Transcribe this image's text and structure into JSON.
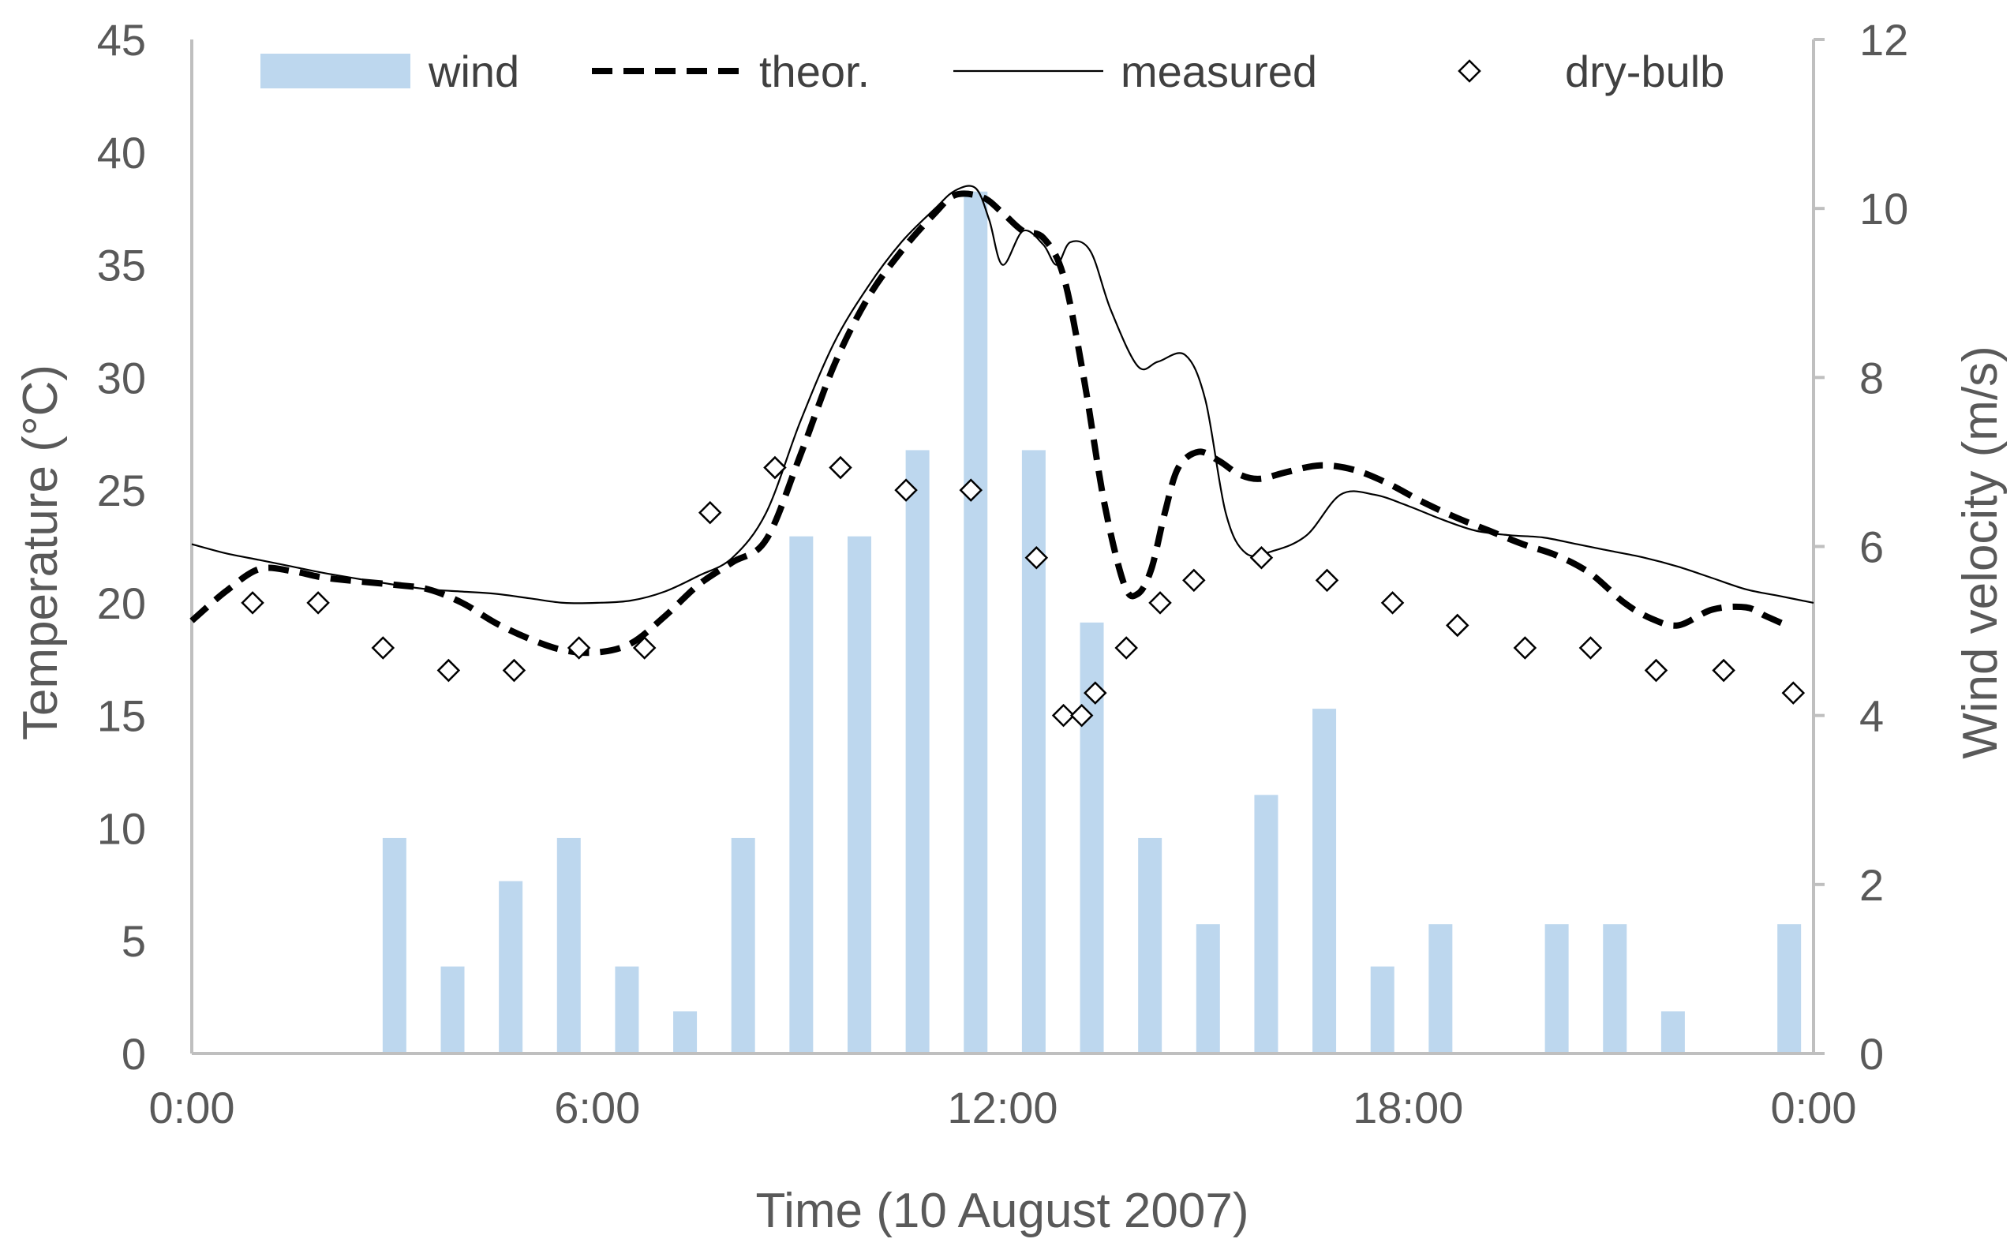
{
  "chart_data": {
    "type": "combo",
    "title": "",
    "xlabel": "Time (10 August 2007)",
    "ylabel_left": "Temperature (°C)",
    "ylabel_right": "Wind velocity (m/s)",
    "xlim_hours": [
      0,
      24
    ],
    "ylim_left": [
      0,
      45
    ],
    "ylim_right": [
      0,
      12
    ],
    "x_ticks": [
      {
        "hour": 0,
        "label": "0:00"
      },
      {
        "hour": 6,
        "label": "6:00"
      },
      {
        "hour": 12,
        "label": "12:00"
      },
      {
        "hour": 18,
        "label": "18:00"
      },
      {
        "hour": 24,
        "label": "0:00"
      }
    ],
    "y_left_ticks": [
      0,
      5,
      10,
      15,
      20,
      25,
      30,
      35,
      40,
      45
    ],
    "y_right_ticks": [
      0,
      2,
      4,
      6,
      8,
      10,
      12
    ],
    "legend_position": "top",
    "legend": [
      {
        "key": "wind",
        "label": "wind"
      },
      {
        "key": "theor",
        "label": "theor."
      },
      {
        "key": "measured",
        "label": "measured"
      },
      {
        "key": "drybulb",
        "label": "dry-bulb"
      }
    ],
    "colors": {
      "wind": "#bdd7ee",
      "line": "#000000",
      "axis": "#bfbfbf",
      "text": "#595959"
    },
    "series": [
      {
        "name": "wind",
        "type": "bar",
        "axis": "right",
        "hours": [
          3,
          3.86,
          4.72,
          5.58,
          6.44,
          7.3,
          8.16,
          9.02,
          9.88,
          10.74,
          11.6,
          12.46,
          13.32,
          14.18,
          15.04,
          15.9,
          16.76,
          17.62,
          18.48,
          19.34,
          20.2,
          21.06,
          21.92,
          22.78,
          23.64
        ],
        "values": [
          2.55,
          1.03,
          2.04,
          2.55,
          1.03,
          0.5,
          2.55,
          6.12,
          6.12,
          7.14,
          10.2,
          7.14,
          5.1,
          2.55,
          1.53,
          3.06,
          4.08,
          1.03,
          1.53,
          0,
          1.53,
          1.53,
          0.5,
          0,
          1.53
        ]
      },
      {
        "name": "theor.",
        "type": "line",
        "style": "dashed",
        "axis": "left",
        "hours": [
          0,
          0.5,
          1,
          1.5,
          2,
          3,
          3.5,
          4,
          4.5,
          5,
          5.5,
          6,
          6.5,
          7,
          7.5,
          8,
          8.5,
          9,
          9.5,
          10,
          10.5,
          11,
          11.3,
          11.7,
          12,
          12.3,
          12.6,
          12.9,
          13.2,
          13.5,
          13.8,
          14,
          14.2,
          14.4,
          14.6,
          14.9,
          15.2,
          15.5,
          15.8,
          16.2,
          16.7,
          17.2,
          17.7,
          18.2,
          18.7,
          19.2,
          19.7,
          20.2,
          20.7,
          21.2,
          21.6,
          22,
          22.5,
          23,
          23.3,
          23.6
        ],
        "values": [
          19.2,
          20.5,
          21.5,
          21.4,
          21.1,
          20.8,
          20.6,
          20.0,
          19.1,
          18.4,
          17.9,
          17.8,
          18.2,
          19.4,
          20.8,
          21.8,
          22.8,
          26.5,
          30.5,
          33.5,
          35.6,
          37.3,
          38.1,
          38.0,
          37.3,
          36.5,
          36.2,
          34.5,
          30.0,
          24.5,
          20.8,
          20.4,
          21.5,
          24.0,
          26.0,
          26.7,
          26.3,
          25.7,
          25.5,
          25.8,
          26.1,
          25.9,
          25.3,
          24.5,
          23.8,
          23.2,
          22.6,
          22.1,
          21.3,
          20.0,
          19.3,
          19.0,
          19.7,
          19.8,
          19.4,
          19.0
        ]
      },
      {
        "name": "measured",
        "type": "line",
        "style": "solid",
        "axis": "left",
        "hours": [
          0,
          0.5,
          1,
          1.5,
          2,
          3,
          3.5,
          4,
          4.5,
          5,
          5.5,
          6,
          6.5,
          7,
          7.5,
          8,
          8.5,
          9,
          9.5,
          10,
          10.5,
          11,
          11.3,
          11.6,
          11.8,
          12,
          12.3,
          12.6,
          12.8,
          13,
          13.3,
          13.6,
          14,
          14.3,
          14.7,
          15,
          15.3,
          15.6,
          16,
          16.5,
          17,
          17.5,
          18,
          18.5,
          19,
          19.5,
          20,
          20.5,
          21,
          21.5,
          22,
          22.5,
          23,
          23.5,
          24
        ],
        "values": [
          22.6,
          22.2,
          21.9,
          21.6,
          21.3,
          20.8,
          20.6,
          20.5,
          20.4,
          20.2,
          20.0,
          20.0,
          20.1,
          20.5,
          21.2,
          22.0,
          24.0,
          28.0,
          31.5,
          34.0,
          36.0,
          37.5,
          38.3,
          38.4,
          37.0,
          35.0,
          36.5,
          35.9,
          35.0,
          36.0,
          35.6,
          33.0,
          30.5,
          30.7,
          31.0,
          29.0,
          24.0,
          22.2,
          22.3,
          23.0,
          24.8,
          24.8,
          24.3,
          23.7,
          23.2,
          23.0,
          22.9,
          22.6,
          22.3,
          22.0,
          21.6,
          21.1,
          20.6,
          20.3,
          20.0
        ]
      },
      {
        "name": "dry-bulb",
        "type": "scatter",
        "marker": "diamond",
        "axis": "left",
        "hours": [
          0.9,
          1.87,
          2.83,
          3.8,
          4.77,
          5.73,
          6.7,
          7.67,
          8.63,
          9.6,
          10.57,
          11.53,
          12.5,
          12.9,
          13.17,
          13.37,
          13.83,
          14.33,
          14.83,
          15.83,
          16.8,
          17.77,
          18.73,
          19.73,
          20.7,
          21.67,
          22.67,
          23.7
        ],
        "values": [
          20,
          20,
          18,
          17,
          17,
          18,
          18,
          24,
          26,
          26,
          25,
          25,
          22,
          15,
          15,
          16,
          18,
          20,
          21,
          22,
          21,
          20,
          19,
          18,
          18,
          17,
          17,
          16
        ]
      }
    ]
  }
}
